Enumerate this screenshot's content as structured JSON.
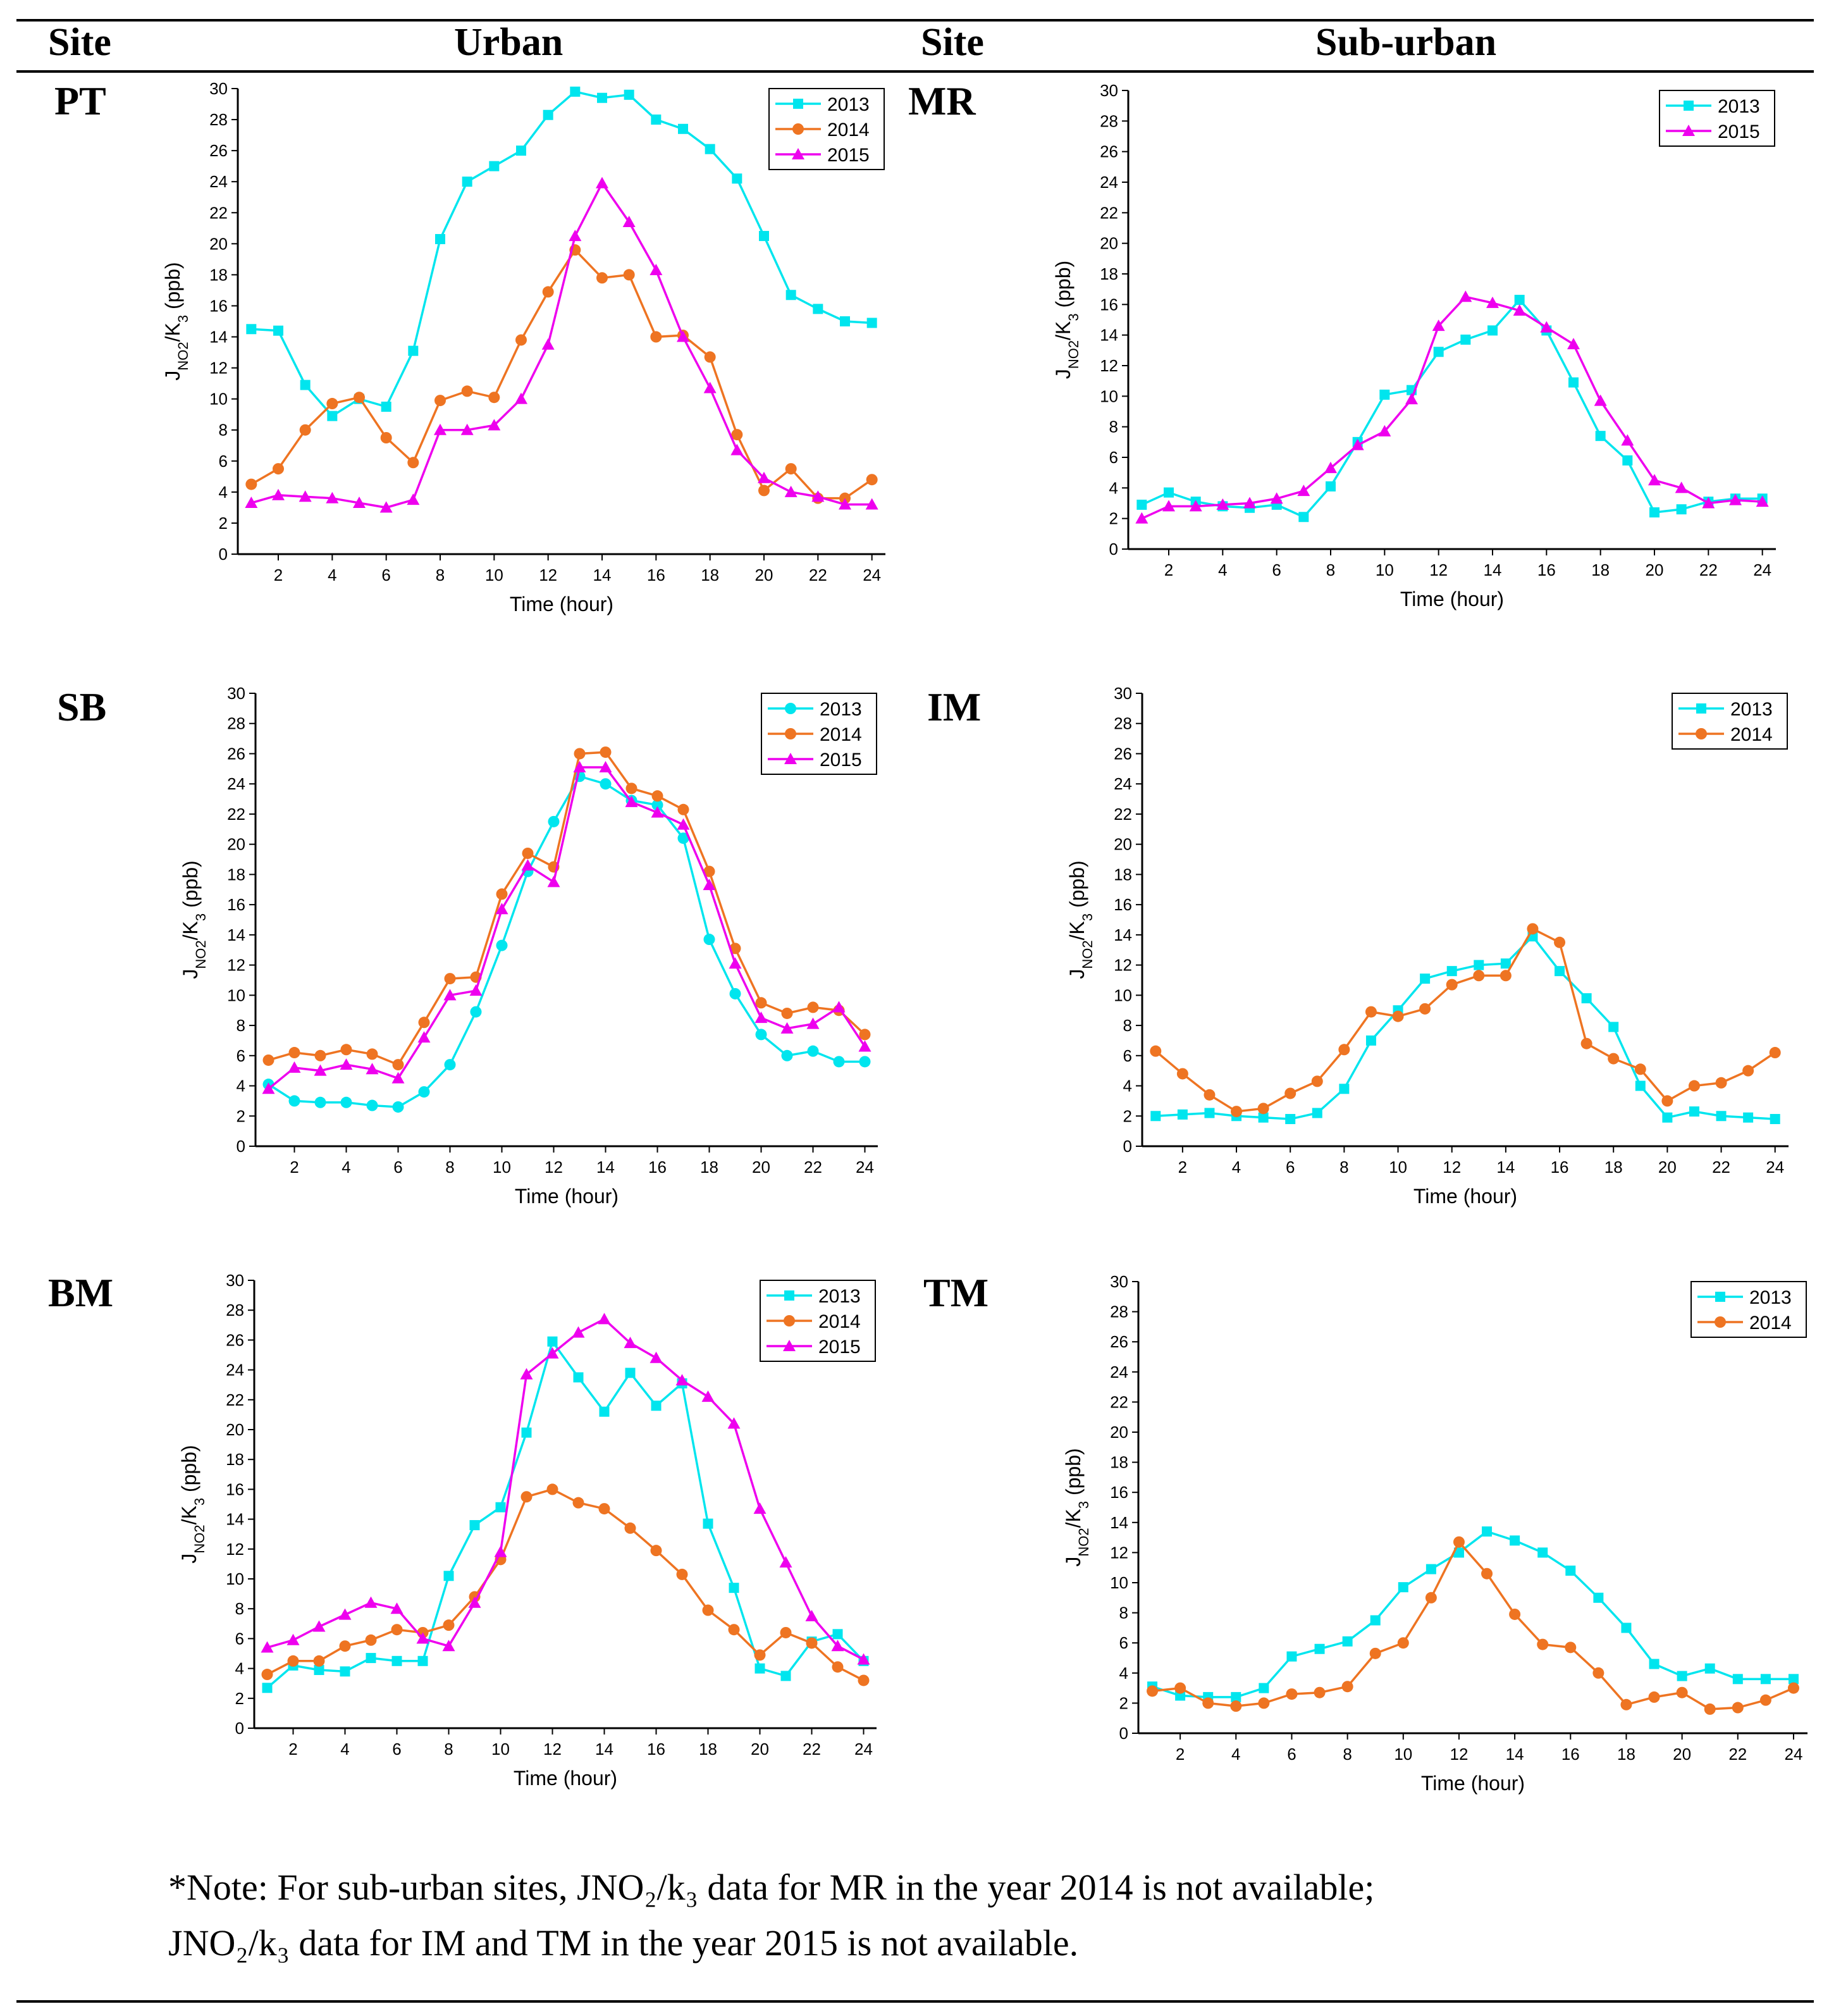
{
  "headers": {
    "site_left": "Site",
    "urban": "Urban",
    "site_right": "Site",
    "suburban": "Sub-urban"
  },
  "colors": {
    "2013": "#00E5EE",
    "2014": "#EE7422",
    "2015": "#EE00EE",
    "axis": "#000000"
  },
  "note": {
    "line1": "*Note: For sub-urban sites, JNO₂/k₃ data for MR in the year 2014 is not available;",
    "line2": "JNO₂/k₃ data for IM and TM in the year 2015 is not available."
  },
  "sites": [
    {
      "code": "PT"
    },
    {
      "code": "MR"
    },
    {
      "code": "SB"
    },
    {
      "code": "IM"
    },
    {
      "code": "BM"
    },
    {
      "code": "TM"
    }
  ],
  "chart_data": [
    {
      "type": "line",
      "site": "PT",
      "group": "Urban",
      "xlabel": "Time (hour)",
      "ylabel": "J_NO2/K_3 (ppb)",
      "xlim": [
        0.5,
        24.5
      ],
      "ylim": [
        0,
        30
      ],
      "xticks": [
        "2",
        "4",
        "6",
        "8",
        "10",
        "12",
        "14",
        "16",
        "18",
        "20",
        "22",
        "24"
      ],
      "yticks": [
        "0",
        "2",
        "4",
        "6",
        "8",
        "10",
        "12",
        "14",
        "16",
        "18",
        "20",
        "22",
        "24",
        "26",
        "28",
        "30"
      ],
      "legend": "top-right",
      "x": [
        1,
        2,
        3,
        4,
        5,
        6,
        7,
        8,
        9,
        10,
        11,
        12,
        13,
        14,
        15,
        16,
        17,
        18,
        19,
        20,
        21,
        22,
        23,
        24
      ],
      "series": [
        {
          "name": "2013",
          "marker": "square",
          "values": [
            14.5,
            14.4,
            10.9,
            8.9,
            10.0,
            9.5,
            13.1,
            20.3,
            24.0,
            25.0,
            26.0,
            28.3,
            29.8,
            29.4,
            29.6,
            28.0,
            27.4,
            26.1,
            24.2,
            20.5,
            16.7,
            15.8,
            15.0,
            14.9
          ]
        },
        {
          "name": "2014",
          "marker": "circle",
          "values": [
            4.5,
            5.5,
            8.0,
            9.7,
            10.1,
            7.5,
            5.9,
            9.9,
            10.5,
            10.1,
            13.8,
            16.9,
            19.6,
            17.8,
            18.0,
            14.0,
            14.1,
            12.7,
            7.7,
            4.1,
            5.5,
            3.6,
            3.6,
            4.8
          ]
        },
        {
          "name": "2015",
          "marker": "triangle",
          "values": [
            3.3,
            3.8,
            3.7,
            3.6,
            3.3,
            3.0,
            3.5,
            8.0,
            8.0,
            8.3,
            10.0,
            13.5,
            20.5,
            23.9,
            21.4,
            18.3,
            14.0,
            10.7,
            6.7,
            4.9,
            4.0,
            3.7,
            3.2,
            3.2
          ]
        }
      ]
    },
    {
      "type": "line",
      "site": "MR",
      "group": "Sub-urban",
      "xlabel": "Time (hour)",
      "ylabel": "J_NO2/K_3 (ppb)",
      "xlim": [
        0.5,
        24.5
      ],
      "ylim": [
        0,
        30
      ],
      "xticks": [
        "2",
        "4",
        "6",
        "8",
        "10",
        "12",
        "14",
        "16",
        "18",
        "20",
        "22",
        "24"
      ],
      "yticks": [
        "0",
        "2",
        "4",
        "6",
        "8",
        "10",
        "12",
        "14",
        "16",
        "18",
        "20",
        "22",
        "24",
        "26",
        "28",
        "30"
      ],
      "legend": "top-right",
      "x": [
        1,
        2,
        3,
        4,
        5,
        6,
        7,
        8,
        9,
        10,
        11,
        12,
        13,
        14,
        15,
        16,
        17,
        18,
        19,
        20,
        21,
        22,
        23,
        24
      ],
      "series": [
        {
          "name": "2013",
          "marker": "square",
          "values": [
            2.9,
            3.7,
            3.1,
            2.8,
            2.7,
            2.9,
            2.1,
            4.1,
            7.0,
            10.1,
            10.4,
            12.9,
            13.7,
            14.3,
            16.3,
            14.3,
            10.9,
            7.4,
            5.8,
            2.4,
            2.6,
            3.1,
            3.3,
            3.3
          ]
        },
        {
          "name": "2015",
          "marker": "triangle",
          "values": [
            2.0,
            2.8,
            2.8,
            2.9,
            3.0,
            3.3,
            3.8,
            5.3,
            6.8,
            7.7,
            9.8,
            14.6,
            16.5,
            16.1,
            15.6,
            14.5,
            13.4,
            9.7,
            7.1,
            4.5,
            4.0,
            3.0,
            3.2,
            3.1
          ]
        }
      ]
    },
    {
      "type": "line",
      "site": "SB",
      "group": "Urban",
      "xlabel": "Time (hour)",
      "ylabel": "J_NO2/K_3 (ppb)",
      "xlim": [
        0.5,
        24.5
      ],
      "ylim": [
        0,
        30
      ],
      "xticks": [
        "2",
        "4",
        "6",
        "8",
        "10",
        "12",
        "14",
        "16",
        "18",
        "20",
        "22",
        "24"
      ],
      "yticks": [
        "0",
        "2",
        "4",
        "6",
        "8",
        "10",
        "12",
        "14",
        "16",
        "18",
        "20",
        "22",
        "24",
        "26",
        "28",
        "30"
      ],
      "legend": "top-right",
      "x": [
        1,
        2,
        3,
        4,
        5,
        6,
        7,
        8,
        9,
        10,
        11,
        12,
        13,
        14,
        15,
        16,
        17,
        18,
        19,
        20,
        21,
        22,
        23,
        24
      ],
      "series": [
        {
          "name": "2013",
          "marker": "circle",
          "values": [
            4.1,
            3.0,
            2.9,
            2.9,
            2.7,
            2.6,
            3.6,
            5.4,
            8.9,
            13.3,
            18.2,
            21.5,
            24.5,
            24.0,
            22.9,
            22.6,
            20.4,
            13.7,
            10.1,
            7.4,
            6.0,
            6.3,
            5.6,
            5.6
          ]
        },
        {
          "name": "2014",
          "marker": "circle",
          "values": [
            5.7,
            6.2,
            6.0,
            6.4,
            6.1,
            5.4,
            8.2,
            11.1,
            11.2,
            16.7,
            19.4,
            18.5,
            26.0,
            26.1,
            23.7,
            23.2,
            22.3,
            18.2,
            13.1,
            9.5,
            8.8,
            9.2,
            9.0,
            7.4
          ]
        },
        {
          "name": "2015",
          "marker": "triangle",
          "values": [
            3.8,
            5.2,
            5.0,
            5.4,
            5.1,
            4.5,
            7.2,
            10.0,
            10.3,
            15.7,
            18.6,
            17.5,
            25.1,
            25.1,
            22.8,
            22.1,
            21.3,
            17.3,
            12.1,
            8.5,
            7.8,
            8.1,
            9.2,
            6.6
          ]
        }
      ]
    },
    {
      "type": "line",
      "site": "IM",
      "group": "Sub-urban",
      "xlabel": "Time (hour)",
      "ylabel": "J_NO2/K_3 (ppb)",
      "xlim": [
        0.5,
        24.5
      ],
      "ylim": [
        0,
        30
      ],
      "xticks": [
        "2",
        "4",
        "6",
        "8",
        "10",
        "12",
        "14",
        "16",
        "18",
        "20",
        "22",
        "24"
      ],
      "yticks": [
        "0",
        "2",
        "4",
        "6",
        "8",
        "10",
        "12",
        "14",
        "16",
        "18",
        "20",
        "22",
        "24",
        "26",
        "28",
        "30"
      ],
      "legend": "top-right",
      "x": [
        1,
        2,
        3,
        4,
        5,
        6,
        7,
        8,
        9,
        10,
        11,
        12,
        13,
        14,
        15,
        16,
        17,
        18,
        19,
        20,
        21,
        22,
        23,
        24
      ],
      "series": [
        {
          "name": "2013",
          "marker": "square",
          "values": [
            2.0,
            2.1,
            2.2,
            2.0,
            1.9,
            1.8,
            2.2,
            3.8,
            7.0,
            9.0,
            11.1,
            11.6,
            12.0,
            12.1,
            13.9,
            11.6,
            9.8,
            7.9,
            4.0,
            1.9,
            2.3,
            2.0,
            1.9,
            1.8
          ]
        },
        {
          "name": "2014",
          "marker": "circle",
          "values": [
            6.3,
            4.8,
            3.4,
            2.3,
            2.5,
            3.5,
            4.3,
            6.4,
            8.9,
            8.6,
            9.1,
            10.7,
            11.3,
            11.3,
            14.4,
            13.5,
            6.8,
            5.8,
            5.1,
            3.0,
            4.0,
            4.2,
            5.0,
            6.2
          ]
        }
      ]
    },
    {
      "type": "line",
      "site": "BM",
      "group": "Urban",
      "xlabel": "Time (hour)",
      "ylabel": "J_NO2/K_3 (ppb)",
      "xlim": [
        0.5,
        24.5
      ],
      "ylim": [
        0,
        30
      ],
      "xticks": [
        "2",
        "4",
        "6",
        "8",
        "10",
        "12",
        "14",
        "16",
        "18",
        "20",
        "22",
        "24"
      ],
      "yticks": [
        "0",
        "2",
        "4",
        "6",
        "8",
        "10",
        "12",
        "14",
        "16",
        "18",
        "20",
        "22",
        "24",
        "26",
        "28",
        "30"
      ],
      "legend": "top-right",
      "x": [
        1,
        2,
        3,
        4,
        5,
        6,
        7,
        8,
        9,
        10,
        11,
        12,
        13,
        14,
        15,
        16,
        17,
        18,
        19,
        20,
        21,
        22,
        23,
        24
      ],
      "series": [
        {
          "name": "2013",
          "marker": "square",
          "values": [
            2.7,
            4.2,
            3.9,
            3.8,
            4.7,
            4.5,
            4.5,
            10.2,
            13.6,
            14.8,
            19.8,
            25.9,
            23.5,
            21.2,
            23.8,
            21.6,
            23.1,
            13.7,
            9.4,
            4.0,
            3.5,
            5.8,
            6.3,
            4.5
          ]
        },
        {
          "name": "2014",
          "marker": "circle",
          "values": [
            3.6,
            4.5,
            4.5,
            5.5,
            5.9,
            6.6,
            6.4,
            6.9,
            8.8,
            11.3,
            15.5,
            16.0,
            15.1,
            14.7,
            13.4,
            11.9,
            10.3,
            7.9,
            6.6,
            4.9,
            6.4,
            5.7,
            4.1,
            3.2
          ]
        },
        {
          "name": "2015",
          "marker": "triangle",
          "values": [
            5.4,
            5.9,
            6.8,
            7.6,
            8.4,
            8.0,
            6.0,
            5.5,
            8.4,
            11.8,
            23.7,
            25.1,
            26.5,
            27.4,
            25.8,
            24.8,
            23.3,
            22.2,
            20.4,
            14.7,
            11.1,
            7.5,
            5.5,
            4.6
          ]
        }
      ]
    },
    {
      "type": "line",
      "site": "TM",
      "group": "Sub-urban",
      "xlabel": "Time (hour)",
      "ylabel": "J_NO2/K_3 (ppb)",
      "xlim": [
        0.5,
        24.5
      ],
      "ylim": [
        0,
        30
      ],
      "xticks": [
        "2",
        "4",
        "6",
        "8",
        "10",
        "12",
        "14",
        "16",
        "18",
        "20",
        "22",
        "24"
      ],
      "yticks": [
        "0",
        "2",
        "4",
        "6",
        "8",
        "10",
        "12",
        "14",
        "16",
        "18",
        "20",
        "22",
        "24",
        "26",
        "28",
        "30"
      ],
      "legend": "top-right",
      "x": [
        1,
        2,
        3,
        4,
        5,
        6,
        7,
        8,
        9,
        10,
        11,
        12,
        13,
        14,
        15,
        16,
        17,
        18,
        19,
        20,
        21,
        22,
        23,
        24
      ],
      "series": [
        {
          "name": "2013",
          "marker": "square",
          "values": [
            3.1,
            2.5,
            2.4,
            2.4,
            3.0,
            5.1,
            5.6,
            6.1,
            7.5,
            9.7,
            10.9,
            12.0,
            13.4,
            12.8,
            12.0,
            10.8,
            9.0,
            7.0,
            4.6,
            3.8,
            4.3,
            3.6,
            3.6,
            3.6
          ]
        },
        {
          "name": "2014",
          "marker": "circle",
          "values": [
            2.8,
            3.0,
            2.0,
            1.8,
            2.0,
            2.6,
            2.7,
            3.1,
            5.3,
            6.0,
            9.0,
            12.7,
            10.6,
            7.9,
            5.9,
            5.7,
            4.0,
            1.9,
            2.4,
            2.7,
            1.6,
            1.7,
            2.2,
            3.0
          ]
        }
      ]
    }
  ]
}
